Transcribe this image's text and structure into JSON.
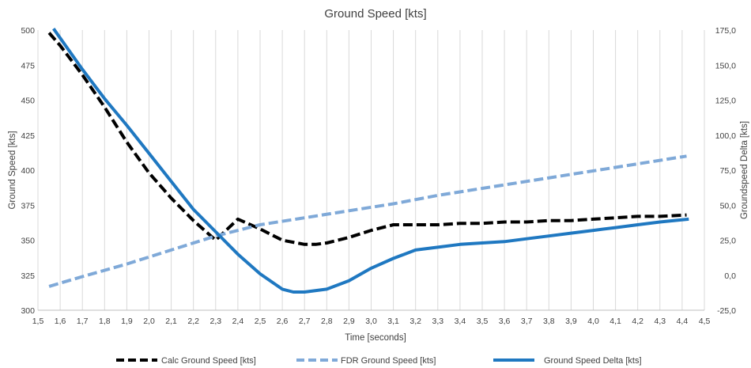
{
  "chart_data": {
    "type": "line",
    "title": "Ground Speed [kts]",
    "xlabel": "Time [seconds]",
    "ylabel": "Ground Speed [kts]",
    "y2label": "Groundspeed Delta [kts]",
    "xlim": [
      1.5,
      4.5
    ],
    "ylim": [
      300,
      500
    ],
    "y2lim": [
      -25,
      175
    ],
    "grid": "vertical",
    "legend": "bottom",
    "x_ticks": [
      "1,5",
      "1,6",
      "1,7",
      "1,8",
      "1,9",
      "2,0",
      "2,1",
      "2,2",
      "2,3",
      "2,4",
      "2,5",
      "2,6",
      "2,7",
      "2,8",
      "2,9",
      "3,0",
      "3,1",
      "3,2",
      "3,3",
      "3,4",
      "3,5",
      "3,6",
      "3,7",
      "3,8",
      "3,9",
      "4,0",
      "4,1",
      "4,2",
      "4,3",
      "4,4",
      "4,5"
    ],
    "y_ticks": [
      "300",
      "325",
      "350",
      "375",
      "400",
      "425",
      "450",
      "475",
      "500"
    ],
    "y2_ticks": [
      "-25,0",
      "0,0",
      "25,0",
      "50,0",
      "75,0",
      "100,0",
      "125,0",
      "150,0",
      "175,0"
    ],
    "series": [
      {
        "name": "Calc Ground Speed [kts]",
        "axis": "left",
        "color": "#000000",
        "dash": true,
        "x": [
          1.55,
          1.6,
          1.7,
          1.8,
          1.9,
          2.0,
          2.1,
          2.2,
          2.3,
          2.4,
          2.5,
          2.6,
          2.7,
          2.75,
          2.8,
          2.9,
          3.0,
          3.1,
          3.2,
          3.3,
          3.4,
          3.5,
          3.6,
          3.7,
          3.8,
          3.9,
          4.0,
          4.1,
          4.2,
          4.3,
          4.42
        ],
        "y": [
          498,
          489,
          468,
          445,
          420,
          398,
          380,
          364,
          350,
          365,
          358,
          350,
          347,
          347,
          348,
          352,
          357,
          361,
          361,
          361,
          362,
          362,
          363,
          363,
          364,
          364,
          365,
          366,
          367,
          367,
          368
        ]
      },
      {
        "name": "FDR Ground Speed [kts]",
        "axis": "right",
        "color": "#7fa9d8",
        "dash": true,
        "x": [
          1.55,
          1.7,
          1.9,
          2.1,
          2.3,
          2.5,
          2.7,
          2.9,
          3.1,
          3.3,
          3.5,
          3.7,
          3.9,
          4.1,
          4.3,
          4.42
        ],
        "y": [
          -8,
          -1,
          8,
          18,
          28,
          36,
          41,
          46,
          51,
          57,
          62,
          67,
          72,
          77,
          82,
          85
        ]
      },
      {
        "name": "Ground Speed Delta [kts]",
        "axis": "right",
        "color": "#1f78c1",
        "dash": false,
        "x": [
          1.57,
          1.7,
          1.8,
          1.9,
          2.0,
          2.1,
          2.2,
          2.3,
          2.4,
          2.5,
          2.6,
          2.65,
          2.7,
          2.8,
          2.9,
          3.0,
          3.1,
          3.2,
          3.3,
          3.4,
          3.5,
          3.6,
          3.7,
          3.8,
          3.9,
          4.0,
          4.1,
          4.2,
          4.3,
          4.43
        ],
        "y": [
          176,
          147,
          126,
          107,
          87,
          67,
          47,
          31,
          15,
          1,
          -10,
          -12,
          -12,
          -10,
          -4,
          5,
          12,
          18,
          20,
          22,
          23,
          24,
          26,
          28,
          30,
          32,
          34,
          36,
          38,
          40
        ]
      }
    ]
  }
}
